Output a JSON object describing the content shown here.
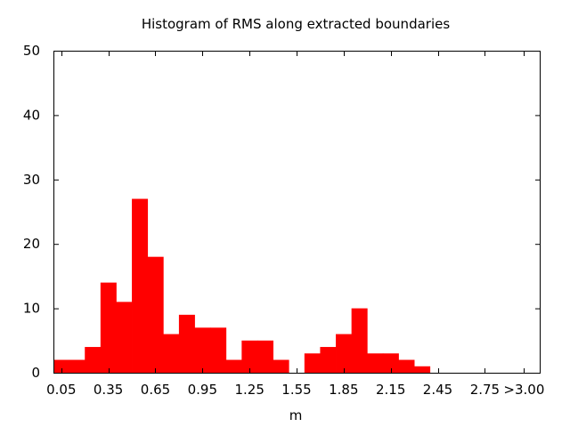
{
  "chart_data": {
    "type": "bar",
    "title": "Histogram of RMS along extracted boundaries",
    "xlabel": "m",
    "ylabel": "",
    "ylim": [
      0,
      50
    ],
    "y_ticks": [
      "0",
      "10",
      "20",
      "30",
      "40",
      "50"
    ],
    "x_range": [
      0.0,
      3.1
    ],
    "x_ticks": [
      {
        "x": 0.05,
        "label": "0.05"
      },
      {
        "x": 0.35,
        "label": "0.35"
      },
      {
        "x": 0.65,
        "label": "0.65"
      },
      {
        "x": 0.95,
        "label": "0.95"
      },
      {
        "x": 1.25,
        "label": "1.25"
      },
      {
        "x": 1.55,
        "label": "1.55"
      },
      {
        "x": 1.85,
        "label": "1.85"
      },
      {
        "x": 2.15,
        "label": "2.15"
      },
      {
        "x": 2.45,
        "label": "2.45"
      },
      {
        "x": 2.75,
        "label": "2.75"
      },
      {
        "x": 3.0,
        "label": ">3.00"
      }
    ],
    "bin_width": 0.1,
    "bin_centers": [
      0.05,
      0.15,
      0.25,
      0.35,
      0.45,
      0.55,
      0.65,
      0.75,
      0.85,
      0.95,
      1.05,
      1.15,
      1.25,
      1.35,
      1.45,
      1.55,
      1.65,
      1.75,
      1.85,
      1.95,
      2.05,
      2.15,
      2.25,
      2.35,
      2.45,
      2.55,
      2.65,
      2.75,
      2.85,
      2.95
    ],
    "values": [
      2,
      2,
      4,
      14,
      11,
      27,
      18,
      6,
      9,
      7,
      7,
      2,
      5,
      5,
      2,
      0,
      3,
      4,
      6,
      10,
      3,
      3,
      2,
      1,
      0,
      0,
      0,
      0,
      0,
      0
    ],
    "bar_color": "#ff0000",
    "grid": false,
    "legend": "none"
  }
}
